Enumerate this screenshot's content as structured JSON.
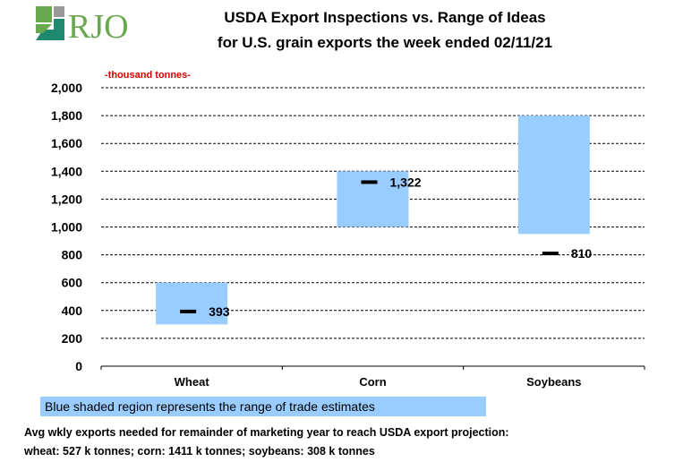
{
  "logo": {
    "text": "RJO",
    "colors": {
      "green": "#6aa84f",
      "teal": "#1f8a70",
      "gray": "#999999"
    }
  },
  "chart_data": {
    "type": "range-bar",
    "title": "USDA Export Inspections vs. Range of Ideas",
    "subtitle": "for U.S. grain exports the week ended 02/11/21",
    "units_label": "-thousand  tonnes-",
    "categories": [
      "Wheat",
      "Corn",
      "Soybeans"
    ],
    "ranges": [
      {
        "low": 300,
        "high": 600
      },
      {
        "low": 1000,
        "high": 1400
      },
      {
        "low": 950,
        "high": 1800
      }
    ],
    "actual_values": [
      393,
      1322,
      810
    ],
    "actual_labels": [
      "393",
      "1,322",
      "810"
    ],
    "ylim": [
      0,
      2000
    ],
    "yticks": [
      0,
      200,
      400,
      600,
      800,
      1000,
      1200,
      1400,
      1600,
      1800,
      2000
    ],
    "ytick_labels": [
      "0",
      "200",
      "400",
      "600",
      "800",
      "1,000",
      "1,200",
      "1,400",
      "1,600",
      "1,800",
      "2,000"
    ],
    "grid": "horizontal-dashed",
    "colors": {
      "range": "#99ccff",
      "marker": "#000000",
      "units": "#e00000"
    }
  },
  "legend": {
    "text": "Blue shaded region represents the range of trade estimates"
  },
  "notes": {
    "line1": "Avg wkly exports needed for remainder of marketing year to reach USDA export projection:",
    "line2": "wheat: 527 k tonnes; corn: 1411 k tonnes; soybeans: 308 k tonnes"
  }
}
